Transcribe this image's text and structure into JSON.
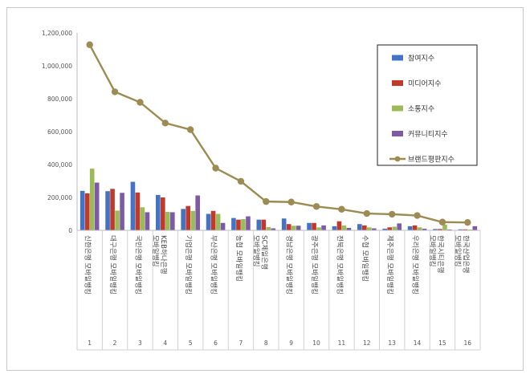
{
  "chart_data": {
    "type": "bar",
    "ylim": [
      0,
      1200000
    ],
    "yticks": [
      "0",
      "200,000",
      "400,000",
      "600,000",
      "800,000",
      "1,000,000",
      "1,200,000"
    ],
    "grid": false,
    "legend_position": "right",
    "categories": [
      "신한은행 모바일뱅킹",
      "대구은행 모바일뱅킹",
      "국민은행 모바일뱅킹",
      "KEB하나은행 모바일뱅킹",
      "기업은행 모바일뱅킹",
      "부산은행 모바일뱅킹",
      "농협 모바일뱅킹",
      "SC제일은행 모바일뱅킹",
      "경남은행 모바일뱅킹",
      "광주은행 모바일뱅킹",
      "전북은행 모바일뱅킹",
      "수협 모바일뱅킹",
      "제주은행 모바일뱅킹",
      "우리은행 모바일뱅킹",
      "한국시티은행 모바일뱅킹",
      "한국산업은행 모바일뱅킹"
    ],
    "rank_labels": [
      "1",
      "2",
      "3",
      "4",
      "5",
      "6",
      "7",
      "8",
      "9",
      "10",
      "11",
      "12",
      "13",
      "14",
      "15",
      "16"
    ],
    "series": [
      {
        "name": "참여지수",
        "type": "bar",
        "color": "#4472c4",
        "values": [
          240000,
          238000,
          295000,
          215000,
          130000,
          100000,
          75000,
          65000,
          72000,
          45000,
          25000,
          38000,
          10000,
          25000,
          8000,
          6000
        ]
      },
      {
        "name": "미디어지수",
        "type": "bar",
        "color": "#c0392b",
        "values": [
          225000,
          252000,
          230000,
          200000,
          148000,
          118000,
          65000,
          65000,
          38000,
          45000,
          55000,
          30000,
          18000,
          30000,
          8000,
          6000
        ]
      },
      {
        "name": "소통지수",
        "type": "bar",
        "color": "#9bbb59",
        "values": [
          375000,
          120000,
          140000,
          112000,
          118000,
          100000,
          68000,
          20000,
          28000,
          18000,
          30000,
          18000,
          22000,
          18000,
          35000,
          5000
        ]
      },
      {
        "name": "커뮤니티지수",
        "type": "bar",
        "color": "#7e5aa6",
        "values": [
          290000,
          228000,
          110000,
          110000,
          212000,
          45000,
          85000,
          12000,
          28000,
          30000,
          15000,
          12000,
          42000,
          10000,
          5000,
          25000
        ]
      },
      {
        "name": "브랜드평판지수",
        "type": "line",
        "color": "#9c8b52",
        "values": [
          1128000,
          842000,
          778000,
          652000,
          612000,
          378000,
          298000,
          175000,
          172000,
          145000,
          128000,
          102000,
          98000,
          90000,
          50000,
          48000
        ]
      }
    ]
  }
}
